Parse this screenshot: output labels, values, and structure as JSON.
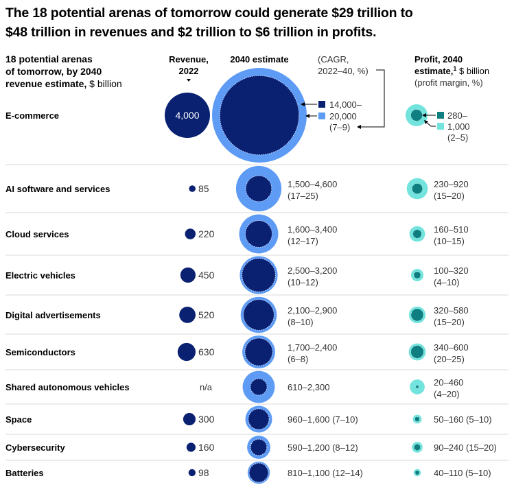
{
  "title_line1": "The 18 potential arenas of tomorrow could generate $29 trillion to",
  "title_line2": "$48 trillion in revenues and $2 trillion to $6 trillion in profits.",
  "chart_data": {
    "type": "bubble-table",
    "colors": {
      "revenue_2022": "#0a2071",
      "revenue_2040_low": "#0a2071",
      "revenue_2040_high": "#5d9bf5",
      "profit_low": "#0f7e80",
      "profit_high": "#72e3dd",
      "divider": "#d9d9d9"
    },
    "headers": {
      "arena_line1": "18 potential arenas",
      "arena_line2": "of tomorrow, by 2040",
      "arena_line3_bold": "revenue estimate,",
      "arena_line3_unit": " $ billion",
      "revenue_2022_line1": "Revenue,",
      "revenue_2022_line2": "2022",
      "estimate_2040": "2040 estimate",
      "cagr_line1": "(CAGR,",
      "cagr_line2": "2022–40, %)",
      "profit_line1": "Profit, 2040",
      "profit_line2_bold": "estimate,",
      "profit_footnote": "1",
      "profit_line2_unit": " $ billion",
      "profit_line3": "(profit margin, %)"
    },
    "legend": {
      "revenue_low_label": "14,000–",
      "revenue_high_label": "20,000",
      "revenue_cagr": "(7–9)",
      "profit_low_label": "280–",
      "profit_high_label": "1,000",
      "profit_margin": "(2–5)"
    },
    "rows": [
      {
        "arena": "E-commerce",
        "revenue_2022": 4000,
        "revenue_2022_label": "4,000",
        "revenue_2040_low": 14000,
        "revenue_2040_high": 20000,
        "revenue_2040_label": "14,000–20,000",
        "cagr": "(7–9)",
        "profit_low": 280,
        "profit_high": 1000,
        "profit_label": "280–1,000",
        "margin": "(2–5)"
      },
      {
        "arena": "AI software and services",
        "revenue_2022": 85,
        "revenue_2022_label": "85",
        "revenue_2040_low": 1500,
        "revenue_2040_high": 4600,
        "revenue_2040_label": "1,500–4,600",
        "cagr": "(17–25)",
        "profit_low": 230,
        "profit_high": 920,
        "profit_label": "230–920",
        "margin": "(15–20)"
      },
      {
        "arena": "Cloud services",
        "revenue_2022": 220,
        "revenue_2022_label": "220",
        "revenue_2040_low": 1600,
        "revenue_2040_high": 3400,
        "revenue_2040_label": "1,600–3,400",
        "cagr": "(12–17)",
        "profit_low": 160,
        "profit_high": 510,
        "profit_label": "160–510",
        "margin": "(10–15)"
      },
      {
        "arena": "Electric vehicles",
        "revenue_2022": 450,
        "revenue_2022_label": "450",
        "revenue_2040_low": 2500,
        "revenue_2040_high": 3200,
        "revenue_2040_label": "2,500–3,200",
        "cagr": "(10–12)",
        "profit_low": 100,
        "profit_high": 320,
        "profit_label": "100–320",
        "margin": "(4–10)"
      },
      {
        "arena": "Digital advertisements",
        "revenue_2022": 520,
        "revenue_2022_label": "520",
        "revenue_2040_low": 2100,
        "revenue_2040_high": 2900,
        "revenue_2040_label": "2,100–2,900",
        "cagr": "(8–10)",
        "profit_low": 320,
        "profit_high": 580,
        "profit_label": "320–580",
        "margin": "(15–20)"
      },
      {
        "arena": "Semiconductors",
        "revenue_2022": 630,
        "revenue_2022_label": "630",
        "revenue_2040_low": 1700,
        "revenue_2040_high": 2400,
        "revenue_2040_label": "1,700–2,400",
        "cagr": "(6–8)",
        "profit_low": 340,
        "profit_high": 600,
        "profit_label": "340–600",
        "margin": "(20–25)"
      },
      {
        "arena": "Shared autonomous vehicles",
        "revenue_2022": null,
        "revenue_2022_label": "n/a",
        "revenue_2040_low": 610,
        "revenue_2040_high": 2300,
        "revenue_2040_label": "610–2,300",
        "cagr": "",
        "profit_low": 20,
        "profit_high": 460,
        "profit_label": "20–460",
        "margin": "(4–20)"
      },
      {
        "arena": "Space",
        "revenue_2022": 300,
        "revenue_2022_label": "300",
        "revenue_2040_low": 960,
        "revenue_2040_high": 1600,
        "revenue_2040_label": "960–1,600 (7–10)",
        "cagr": "",
        "profit_low": 50,
        "profit_high": 160,
        "profit_label": "50–160 (5–10)",
        "margin": ""
      },
      {
        "arena": "Cybersecurity",
        "revenue_2022": 160,
        "revenue_2022_label": "160",
        "revenue_2040_low": 590,
        "revenue_2040_high": 1200,
        "revenue_2040_label": "590–1,200 (8–12)",
        "cagr": "",
        "profit_low": 90,
        "profit_high": 240,
        "profit_label": "90–240 (15–20)",
        "margin": ""
      },
      {
        "arena": "Batteries",
        "revenue_2022": 98,
        "revenue_2022_label": "98",
        "revenue_2040_low": 810,
        "revenue_2040_high": 1100,
        "revenue_2040_label": "810–1,100 (12–14)",
        "cagr": "",
        "profit_low": 40,
        "profit_high": 110,
        "profit_label": "40–110 (5–10)",
        "margin": ""
      }
    ]
  }
}
